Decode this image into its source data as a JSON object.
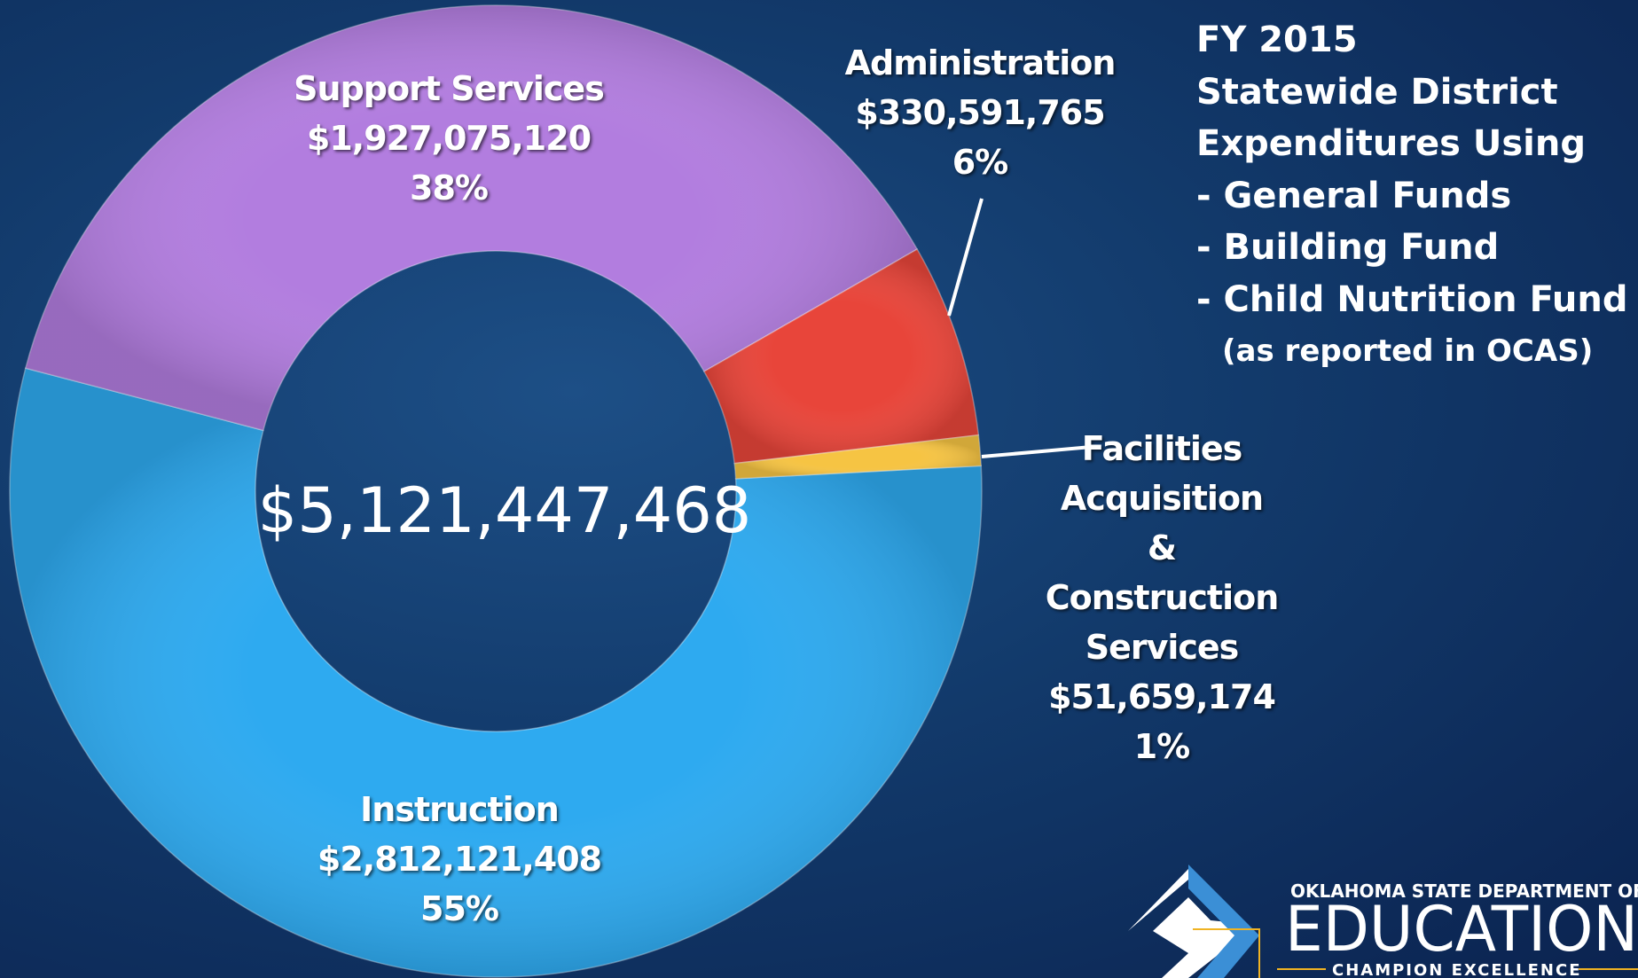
{
  "chart_data": {
    "type": "donut",
    "title": [
      "FY 2015",
      "Statewide District",
      "Expenditures Using",
      "- General Funds",
      "- Building Fund",
      "- Child Nutrition Fund"
    ],
    "subtitle": "(as reported in OCAS)",
    "center_label": "$5,121,447,468",
    "categories": [
      "Instruction",
      "Support Services",
      "Administration",
      "Facilities Acquisition & Construction Services"
    ],
    "values": [
      2812121408,
      1927075120,
      330591765,
      51659174
    ],
    "value_labels": [
      "$2,812,121,408",
      "$1,927,075,120",
      "$330,591,765",
      "$51,659,174"
    ],
    "percent_labels": [
      "55%",
      "38%",
      "6%",
      "1%"
    ],
    "colors": [
      "#2eaaf0",
      "#b27ddf",
      "#e8453a",
      "#f6c443"
    ]
  },
  "logo": {
    "top": "OKLAHOMA STATE DEPARTMENT OF",
    "name": "EDUCATION",
    "tagline": "CHAMPION EXCELLENCE"
  }
}
